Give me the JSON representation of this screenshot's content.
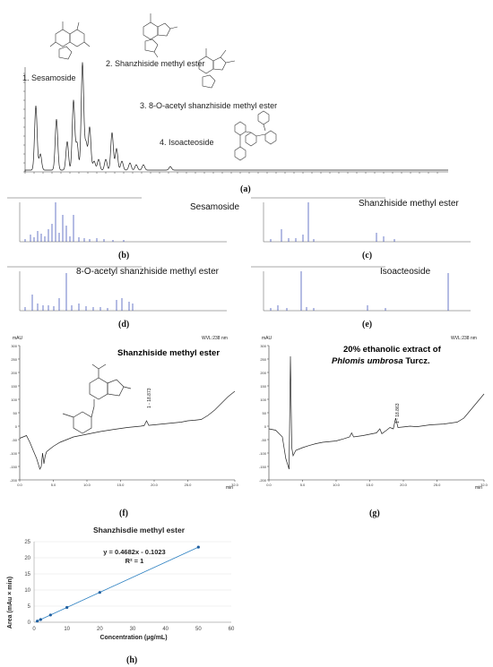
{
  "panel_labels": {
    "a": "(a)",
    "b": "(b)",
    "c": "(c)",
    "d": "(d)",
    "e": "(e)",
    "f": "(f)",
    "g": "(g)",
    "h": "(h)"
  },
  "panel_a": {
    "peak_labels": [
      "1. Sesamoside",
      "2. Shanzhiside methyl ester",
      "3. 8-O-acetyl shanzhiside methyl ester",
      "4. Isoacteoside"
    ]
  },
  "ms_titles": {
    "b": "Sesamoside",
    "c": "Shanzhiside methyl ester",
    "d": "8-O-acetyl shanzhiside methyl ester",
    "e": "Isoacteoside"
  },
  "panel_f": {
    "mau": "mAU",
    "wvl": "WVL:238 nm",
    "title": "Shanzhiside methyl ester",
    "peak_label": "1 - 18.873",
    "min": "min"
  },
  "panel_g": {
    "mau": "mAU",
    "wvl": "WVL:238 nm",
    "title_line1": "20% ethanolic extract of",
    "title_italic": "Phlomis umbrosa",
    "title_rest": " Turcz.",
    "peak_label": "1 - 18.863",
    "min": "min"
  },
  "chart_data": [
    {
      "type": "line",
      "panel": "f",
      "ylabel": "mAU",
      "xlabel": "min",
      "x_ticks": [
        "0.0",
        "5.0",
        "10.0",
        "15.0",
        "20.0",
        "25.0",
        "32.0"
      ],
      "y_ticks": [
        "-200",
        "-150",
        "-100",
        "-50",
        "0",
        "50",
        "100",
        "150",
        "200",
        "250",
        "300"
      ],
      "xlim": [
        0,
        32
      ],
      "ylim": [
        -200,
        300
      ],
      "points": [
        [
          0,
          -45
        ],
        [
          0.5,
          -40
        ],
        [
          1,
          -35
        ],
        [
          1.5,
          -60
        ],
        [
          2,
          -90
        ],
        [
          2.5,
          -120
        ],
        [
          3,
          -160
        ],
        [
          3.2,
          -150
        ],
        [
          3.4,
          -100
        ],
        [
          3.6,
          -140
        ],
        [
          3.8,
          -110
        ],
        [
          4,
          -95
        ],
        [
          5,
          -75
        ],
        [
          6,
          -60
        ],
        [
          7,
          -50
        ],
        [
          8,
          -40
        ],
        [
          10,
          -30
        ],
        [
          12,
          -20
        ],
        [
          14,
          -12
        ],
        [
          16,
          -5
        ],
        [
          18,
          0
        ],
        [
          18.5,
          2
        ],
        [
          18.87,
          20
        ],
        [
          19.2,
          3
        ],
        [
          20,
          5
        ],
        [
          22,
          10
        ],
        [
          24,
          15
        ],
        [
          25,
          20
        ],
        [
          26,
          22
        ],
        [
          27,
          25
        ],
        [
          28,
          40
        ],
        [
          29,
          60
        ],
        [
          30,
          85
        ],
        [
          31,
          110
        ],
        [
          32,
          130
        ]
      ]
    },
    {
      "type": "line",
      "panel": "g",
      "ylabel": "mAU",
      "xlabel": "min",
      "x_ticks": [
        "0.0",
        "5.0",
        "10.0",
        "15.0",
        "20.0",
        "25.0",
        "32.0"
      ],
      "y_ticks": [
        "-200",
        "-150",
        "-100",
        "-50",
        "0",
        "50",
        "100",
        "150",
        "200",
        "250",
        "300"
      ],
      "xlim": [
        0,
        32
      ],
      "ylim": [
        -200,
        300
      ],
      "points": [
        [
          0,
          -10
        ],
        [
          1,
          -15
        ],
        [
          2,
          -40
        ],
        [
          2.5,
          -120
        ],
        [
          3,
          -160
        ],
        [
          3.2,
          260
        ],
        [
          3.4,
          -80
        ],
        [
          3.6,
          -110
        ],
        [
          4,
          -90
        ],
        [
          5,
          -80
        ],
        [
          6,
          -72
        ],
        [
          7,
          -65
        ],
        [
          8,
          -60
        ],
        [
          10,
          -55
        ],
        [
          11,
          -48
        ],
        [
          12,
          -40
        ],
        [
          12.3,
          -25
        ],
        [
          12.6,
          -40
        ],
        [
          14,
          -35
        ],
        [
          15,
          -30
        ],
        [
          16,
          -25
        ],
        [
          16.5,
          -10
        ],
        [
          16.8,
          -28
        ],
        [
          17.5,
          -15
        ],
        [
          18,
          -5
        ],
        [
          18.5,
          -10
        ],
        [
          18.86,
          30
        ],
        [
          19.2,
          -5
        ],
        [
          20,
          -3
        ],
        [
          21,
          0
        ],
        [
          22,
          -2
        ],
        [
          24,
          5
        ],
        [
          26,
          8
        ],
        [
          28,
          15
        ],
        [
          29,
          30
        ],
        [
          30,
          60
        ],
        [
          31,
          90
        ],
        [
          32,
          120
        ]
      ]
    },
    {
      "type": "scatter",
      "panel": "h",
      "title": "Shanzhisdie methyl ester",
      "xlabel": "Concentration (μg/mL)",
      "ylabel": "Area (mAu × min)",
      "equation": "y = 0.4682x - 0.1023",
      "r2": "R² = 1",
      "xlim": [
        0,
        60
      ],
      "ylim": [
        0,
        25
      ],
      "x_ticks": [
        "0",
        "10",
        "20",
        "30",
        "40",
        "50",
        "60"
      ],
      "y_ticks": [
        "0",
        "5",
        "10",
        "15",
        "20",
        "25"
      ],
      "x": [
        1,
        2,
        5,
        10,
        20,
        50
      ],
      "y": [
        0.37,
        0.83,
        2.24,
        4.58,
        9.26,
        23.31
      ]
    }
  ]
}
